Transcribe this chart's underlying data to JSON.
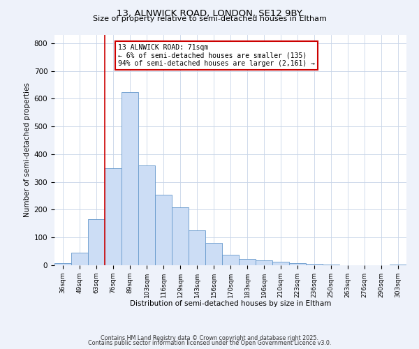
{
  "title_line1": "13, ALNWICK ROAD, LONDON, SE12 9BY",
  "title_line2": "Size of property relative to semi-detached houses in Eltham",
  "xlabel": "Distribution of semi-detached houses by size in Eltham",
  "ylabel": "Number of semi-detached properties",
  "bar_labels": [
    "36sqm",
    "49sqm",
    "63sqm",
    "76sqm",
    "89sqm",
    "103sqm",
    "116sqm",
    "129sqm",
    "143sqm",
    "156sqm",
    "170sqm",
    "183sqm",
    "196sqm",
    "210sqm",
    "223sqm",
    "236sqm",
    "250sqm",
    "263sqm",
    "276sqm",
    "290sqm",
    "303sqm"
  ],
  "bar_values": [
    8,
    45,
    165,
    350,
    625,
    360,
    255,
    210,
    125,
    80,
    38,
    22,
    18,
    12,
    7,
    4,
    2,
    1,
    0,
    0,
    2
  ],
  "bar_color": "#ccddf5",
  "bar_edge_color": "#6699cc",
  "vline_color": "#cc0000",
  "annotation_title": "13 ALNWICK ROAD: 71sqm",
  "annotation_line1": "← 6% of semi-detached houses are smaller (135)",
  "annotation_line2": "94% of semi-detached houses are larger (2,161) →",
  "annotation_box_color": "#ffffff",
  "annotation_box_edge": "#cc0000",
  "ylim": [
    0,
    830
  ],
  "yticks": [
    0,
    100,
    200,
    300,
    400,
    500,
    600,
    700,
    800
  ],
  "footer_line1": "Contains HM Land Registry data © Crown copyright and database right 2025.",
  "footer_line2": "Contains public sector information licensed under the Open Government Licence v3.0.",
  "bg_color": "#eef2fa",
  "plot_bg_color": "#ffffff",
  "grid_color": "#c8d4e8"
}
